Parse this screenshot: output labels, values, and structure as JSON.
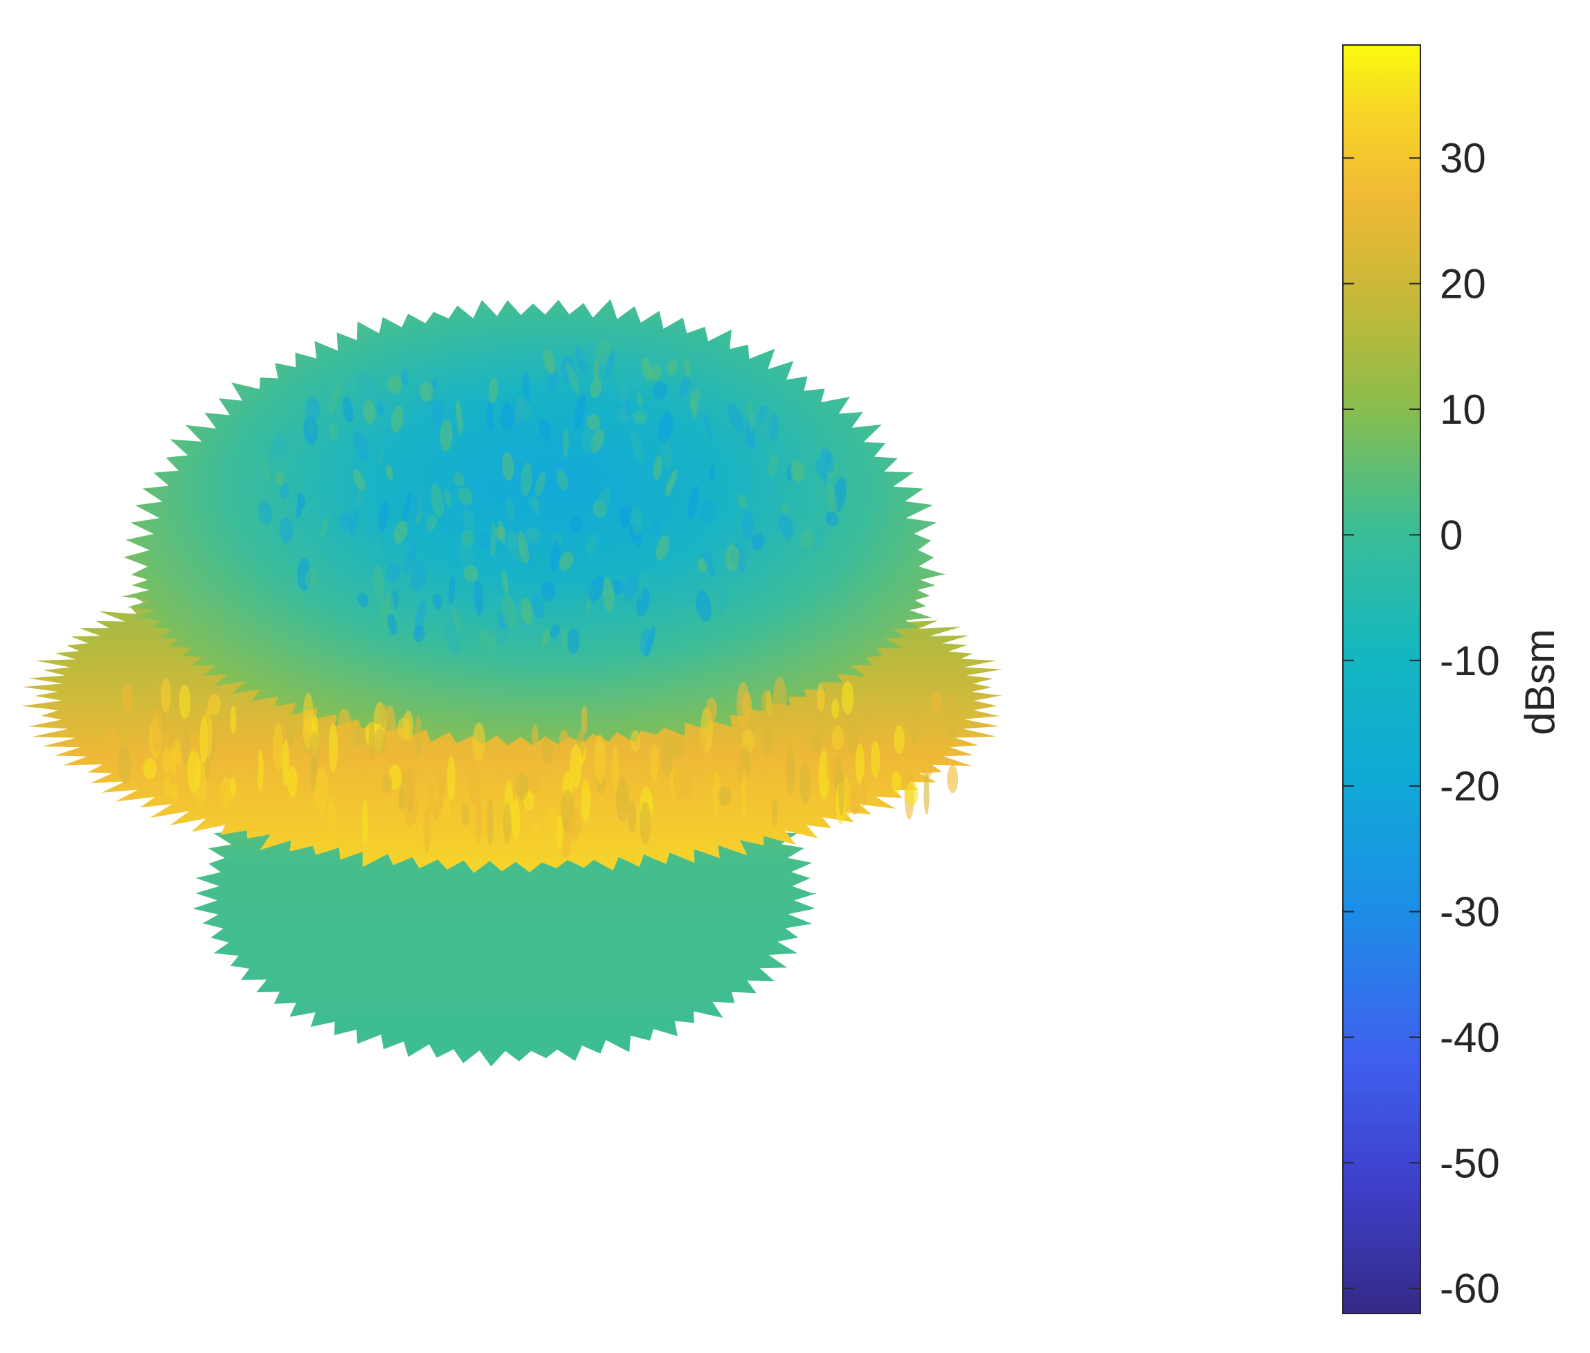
{
  "chart_data": {
    "type": "heatmap",
    "title": "",
    "description_kind": "3D radar cross section pattern surface colored by value",
    "colormap": "parula",
    "colorbar": {
      "label": "dBsm",
      "range": [
        -62,
        39
      ],
      "ticks": [
        30,
        20,
        10,
        0,
        -10,
        -20,
        -30,
        -40,
        -50,
        -60
      ],
      "tick_labels": [
        "30",
        "20",
        "10",
        "0",
        "-10",
        "-20",
        "-30",
        "-40",
        "-50",
        "-60"
      ],
      "placement": "right"
    },
    "surface": {
      "equatorial_band_level_dBsm": 25,
      "upper_lobe_level_dBsm": -12,
      "lower_lobe_level_dBsm": -2
    },
    "axes_visible": false,
    "grid": false
  }
}
